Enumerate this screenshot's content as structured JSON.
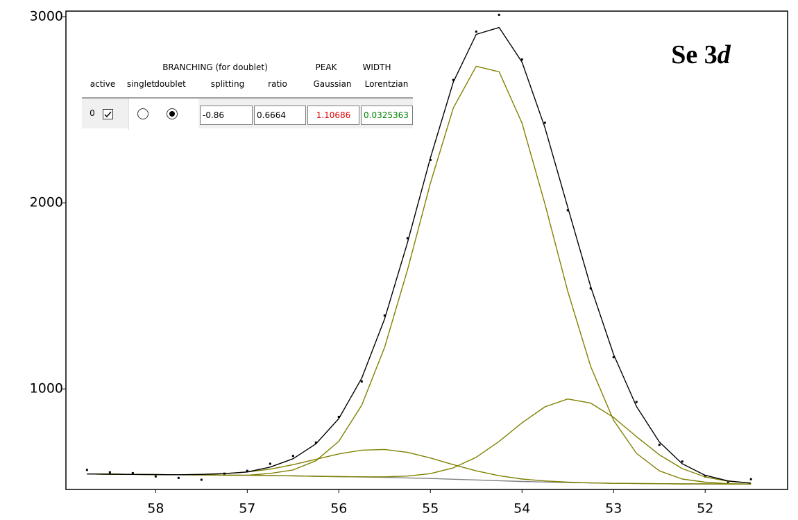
{
  "chart_data": {
    "type": "line",
    "annotation": [
      "Se 3",
      "d"
    ],
    "x": [
      58.75,
      58.5,
      58.25,
      58,
      57.75,
      57.5,
      57.25,
      57,
      56.75,
      56.5,
      56.25,
      56,
      55.75,
      55.5,
      55.25,
      55,
      54.75,
      54.5,
      54.25,
      54,
      53.75,
      53.5,
      53.25,
      53,
      52.75,
      52.5,
      52.25,
      52,
      51.75,
      51.5
    ],
    "series": [
      {
        "color": "#000000",
        "marker": "dot",
        "values": [
          565,
          552,
          548,
          530,
          522,
          512,
          545,
          560,
          598,
          640,
          712,
          850,
          1040,
          1395,
          1810,
          2230,
          2660,
          2920,
          3010,
          2770,
          2430,
          1960,
          1540,
          1170,
          930,
          700,
          610,
          530,
          500,
          515
        ]
      },
      {
        "color": "#808080",
        "marker": "line",
        "values": [
          543,
          542,
          541,
          540,
          539,
          538,
          537,
          536,
          535,
          533,
          531,
          529,
          527,
          525,
          522,
          519,
          515,
          511,
          507,
          503,
          500,
          497,
          495,
          493,
          492,
          491,
          490,
          490,
          489,
          489
        ]
      },
      {
        "color": "#808000",
        "marker": "line",
        "values": [
          543,
          542,
          541,
          540,
          539,
          541,
          545,
          554,
          569,
          593,
          622,
          651,
          671,
          675,
          659,
          629,
          593,
          560,
          534,
          516,
          506,
          499,
          495,
          493,
          492,
          491,
          490,
          490,
          489,
          489
        ]
      },
      {
        "color": "#808000",
        "marker": "line",
        "values": [
          543,
          542,
          541,
          540,
          539,
          538,
          537,
          536,
          535,
          533,
          531,
          529,
          528,
          528,
          532,
          545,
          576,
          633,
          718,
          818,
          904,
          946,
          924,
          847,
          744,
          646,
          572,
          527,
          504,
          494
        ]
      },
      {
        "color": "#808000",
        "marker": "line",
        "values": [
          543,
          542,
          541,
          540,
          539,
          538,
          537,
          536,
          546,
          565,
          614,
          719,
          913,
          1224,
          1640,
          2106,
          2510,
          2734,
          2704,
          2428,
          1994,
          1525,
          1121,
          832,
          654,
          560,
          516,
          499,
          491,
          489
        ]
      },
      {
        "color": "#000000",
        "marker": "line",
        "values": [
          543,
          542,
          541,
          540,
          539,
          541,
          545,
          554,
          580,
          625,
          705,
          841,
          1058,
          1377,
          1787,
          2242,
          2649,
          2905,
          2942,
          2756,
          2404,
          1976,
          1550,
          1186,
          906,
          715,
          598,
          536,
          506,
          494
        ]
      }
    ],
    "xlim": [
      58.98,
      51.1
    ],
    "xticks": [
      58,
      57,
      56,
      55,
      54,
      53,
      52
    ],
    "ylim": [
      460,
      3030
    ],
    "yticks": [
      1000,
      2000,
      3000
    ],
    "grid": false
  },
  "panel": {
    "group_headers": [
      "BRANCHING (for doublet)",
      "PEAK",
      "WIDTH"
    ],
    "column_headers": [
      "active",
      "singlet",
      "doublet",
      "splitting",
      "ratio",
      "Gaussian",
      "Lorentzian"
    ],
    "row": {
      "index": "0",
      "active": true,
      "mode": "doublet",
      "splitting": "-0.86",
      "ratio": "0.6664",
      "gaussian": "1.10686",
      "lorentzian": "0.0325363"
    }
  }
}
